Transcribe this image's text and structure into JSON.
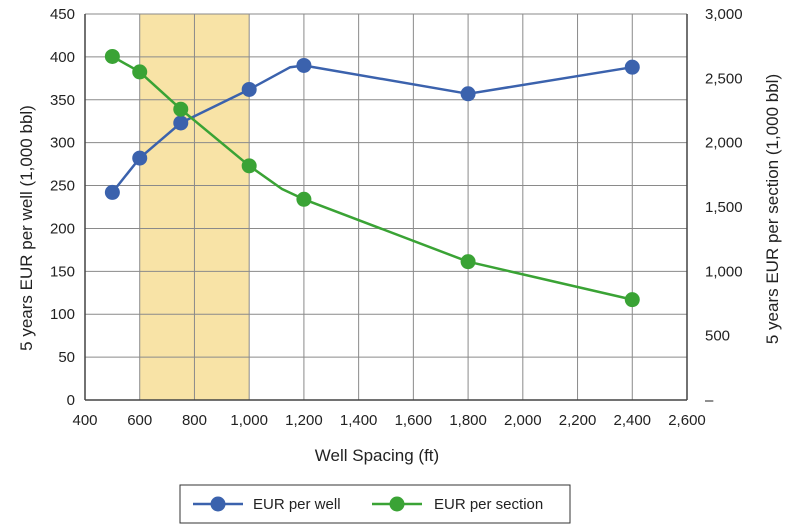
{
  "chart_data": {
    "type": "line",
    "xlabel": "Well Spacing (ft)",
    "ylabel_left": "5 years EUR per well (1,000 bbl)",
    "ylabel_right": "5 years EUR per section (1,000 bbl)",
    "xlim": [
      400,
      2600
    ],
    "ylim_left": [
      0,
      450
    ],
    "ylim_right": [
      0,
      3000
    ],
    "x_ticks": [
      400,
      600,
      800,
      1000,
      1200,
      1400,
      1600,
      1800,
      2000,
      2200,
      2400,
      2600
    ],
    "x_tick_labels": [
      "400",
      "600",
      "800",
      "1,000",
      "1,200",
      "1,400",
      "1,600",
      "1,800",
      "2,000",
      "2,200",
      "2,400",
      "2,600"
    ],
    "y_left_ticks": [
      0,
      50,
      100,
      150,
      200,
      250,
      300,
      350,
      400,
      450
    ],
    "y_left_tick_labels": [
      "0",
      "50",
      "100",
      "150",
      "200",
      "250",
      "300",
      "350",
      "400",
      "450"
    ],
    "y_right_ticks": [
      0,
      500,
      1000,
      1500,
      2000,
      2500,
      3000
    ],
    "y_right_tick_labels": [
      "–",
      "500",
      "1,000",
      "1,500",
      "2,000",
      "2,500",
      "3,000"
    ],
    "highlight_band": {
      "x_from": 600,
      "x_to": 1000,
      "color": "#f8e3a6"
    },
    "grid": true,
    "legend_position": "bottom",
    "series": [
      {
        "name": "EUR per well",
        "axis": "left",
        "color": "#3b62ad",
        "x": [
          500,
          600,
          750,
          1000,
          1200,
          1800,
          2400
        ],
        "y": [
          242,
          282,
          323,
          362,
          390,
          357,
          388
        ],
        "line_x": [
          500,
          600,
          750,
          1000,
          1150,
          1200,
          1800,
          2400
        ],
        "line_y": [
          242,
          282,
          323,
          362,
          388,
          390,
          357,
          388
        ]
      },
      {
        "name": "EUR per section",
        "axis": "right",
        "color": "#3aa335",
        "x": [
          500,
          600,
          750,
          1000,
          1200,
          1800,
          2400
        ],
        "y": [
          2670,
          2550,
          2260,
          1820,
          1560,
          1075,
          780
        ],
        "line_x": [
          500,
          600,
          750,
          1000,
          1120,
          1200,
          1800,
          2400
        ],
        "line_y": [
          2670,
          2550,
          2260,
          1820,
          1640,
          1560,
          1075,
          780
        ]
      }
    ]
  }
}
